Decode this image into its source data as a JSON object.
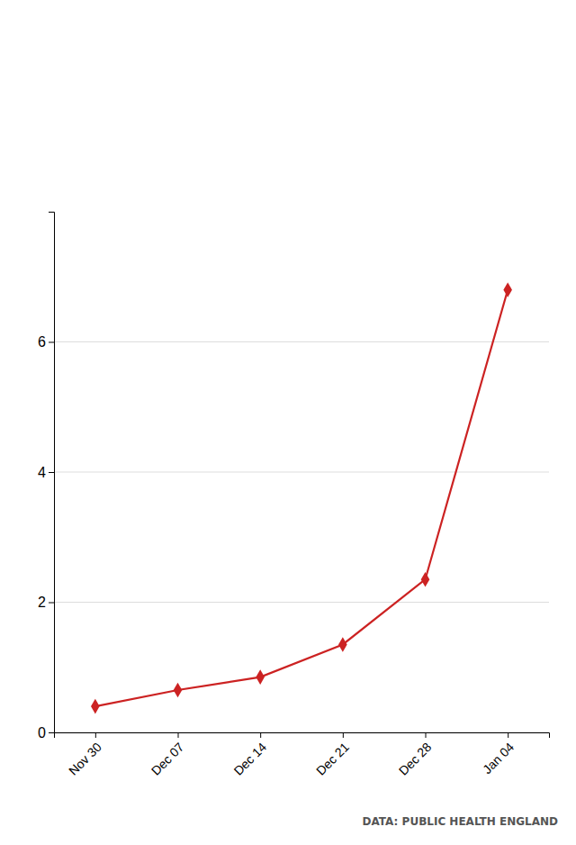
{
  "chart_data": {
    "type": "line",
    "categories": [
      "Nov 30",
      "Dec 07",
      "Dec 14",
      "Dec 21",
      "Dec 28",
      "Jan 04"
    ],
    "values": [
      0.4,
      0.65,
      0.85,
      1.35,
      2.35,
      6.8
    ],
    "color": "#cc2222",
    "marker": "diamond",
    "ylim": [
      0,
      8
    ],
    "yticks": [
      0,
      2,
      4,
      6
    ],
    "grid": true,
    "source": "DATA: PUBLIC HEALTH ENGLAND"
  }
}
